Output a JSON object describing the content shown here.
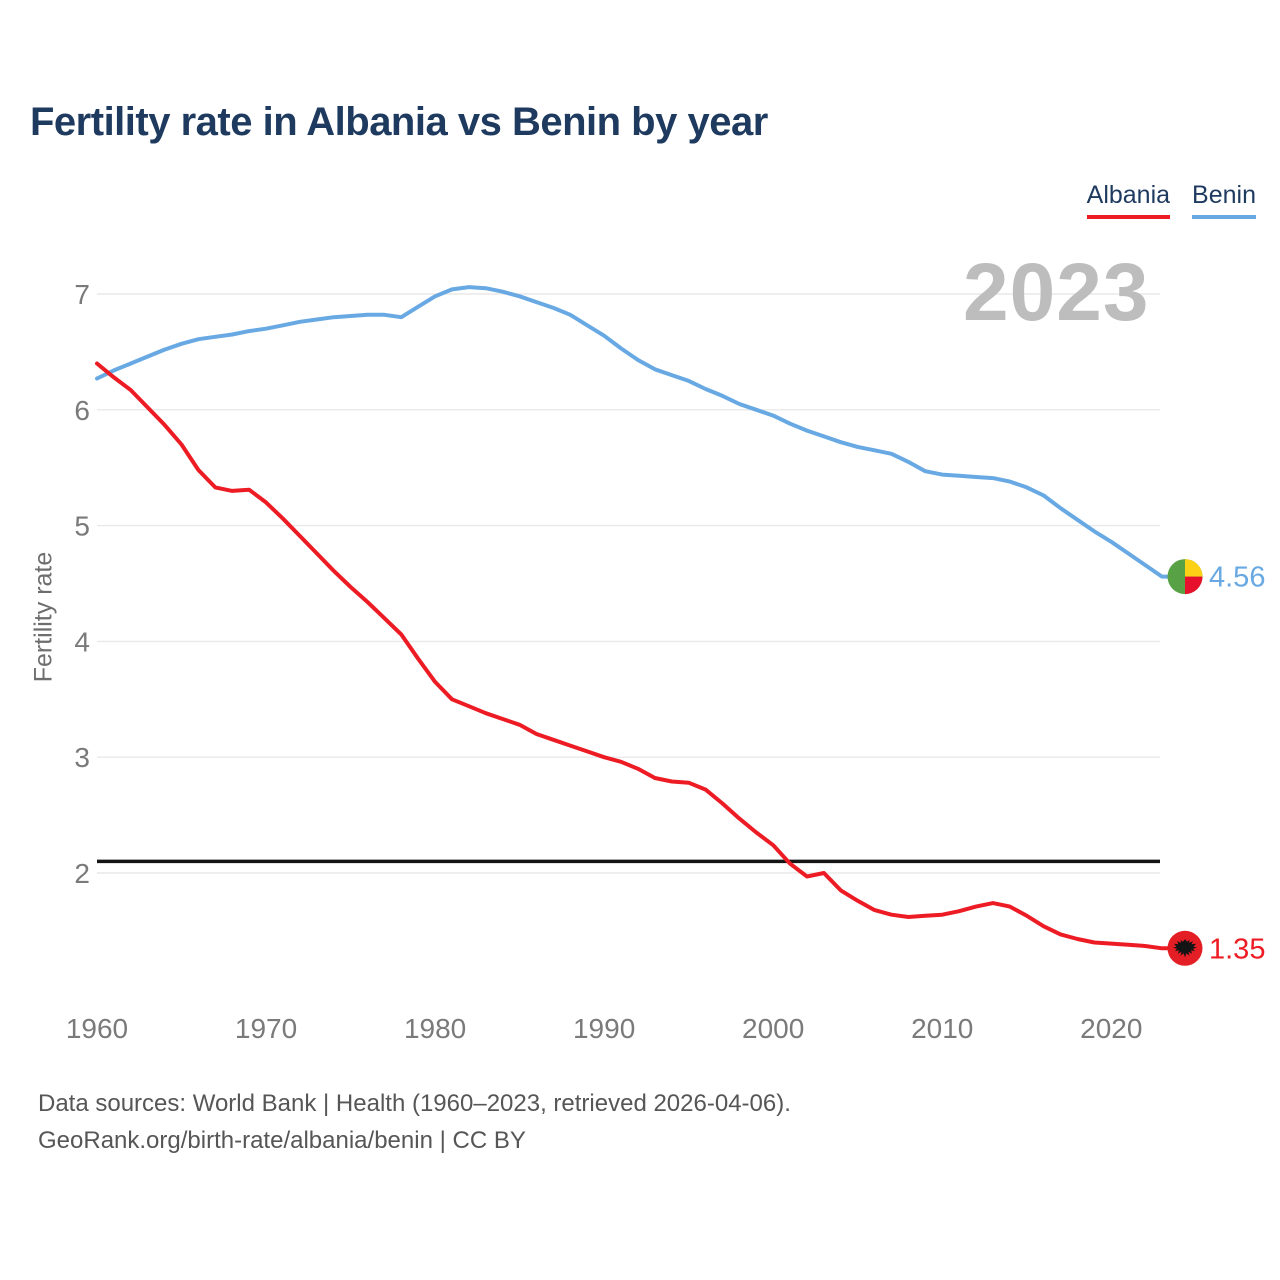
{
  "title": "Fertility rate in Albania vs Benin by year",
  "watermark": "2023",
  "legend": [
    {
      "label": "Albania",
      "color": "#ed1c24"
    },
    {
      "label": "Benin",
      "color": "#68a9e3"
    }
  ],
  "footer": {
    "line1": "Data sources: World Bank | Health (1960–2023, retrieved 2026-04-06).",
    "line2": "GeoRank.org/birth-rate/albania/benin | CC BY"
  },
  "colors": {
    "albania": "#ed1c24",
    "benin": "#68a9e3",
    "title_text": "#1e3a5f",
    "axis_text": "#7a7a7a",
    "gridline": "#e9e9e9",
    "watermark": "#bdbdbd",
    "footer_text": "#565656",
    "replacement_line": "#151515",
    "benin_flag_green": "#58a245",
    "benin_flag_yellow": "#fcd116",
    "benin_flag_red": "#e8112d",
    "albania_flag_red": "#e41e25",
    "albania_flag_eagle": "#141414"
  },
  "chart_data": {
    "type": "line",
    "title": "Fertility rate in Albania vs Benin by year",
    "xlabel": "",
    "ylabel": "Fertility rate",
    "x_range": [
      1960,
      2023
    ],
    "ylim": [
      1.1,
      7.3
    ],
    "x_ticks": [
      1960,
      1970,
      1980,
      1990,
      2000,
      2010,
      2020
    ],
    "y_ticks": [
      2,
      3,
      4,
      5,
      6,
      7
    ],
    "grid": "horizontal",
    "legend_position": "top-right",
    "replacement_line": {
      "value": 2.1
    },
    "series": [
      {
        "name": "Albania",
        "color": "#ed1c24",
        "end_label": "1.35",
        "flag": "albania-flag",
        "values": [
          6.4,
          6.28,
          6.17,
          6.02,
          5.87,
          5.7,
          5.48,
          5.33,
          5.3,
          5.31,
          5.2,
          5.06,
          4.91,
          4.76,
          4.61,
          4.47,
          4.34,
          4.2,
          4.06,
          3.85,
          3.65,
          3.5,
          3.44,
          3.38,
          3.33,
          3.28,
          3.2,
          3.15,
          3.1,
          3.05,
          3.0,
          2.96,
          2.9,
          2.82,
          2.79,
          2.78,
          2.72,
          2.6,
          2.47,
          2.35,
          2.24,
          2.08,
          1.97,
          2.0,
          1.85,
          1.76,
          1.68,
          1.64,
          1.62,
          1.63,
          1.64,
          1.67,
          1.71,
          1.74,
          1.71,
          1.63,
          1.54,
          1.47,
          1.43,
          1.4,
          1.39,
          1.38,
          1.37,
          1.35
        ]
      },
      {
        "name": "Benin",
        "color": "#68a9e3",
        "end_label": "4.56",
        "flag": "benin-flag",
        "values": [
          6.27,
          6.34,
          6.4,
          6.46,
          6.52,
          6.57,
          6.61,
          6.63,
          6.65,
          6.68,
          6.7,
          6.73,
          6.76,
          6.78,
          6.8,
          6.81,
          6.82,
          6.82,
          6.8,
          6.89,
          6.98,
          7.04,
          7.06,
          7.05,
          7.02,
          6.98,
          6.93,
          6.88,
          6.82,
          6.73,
          6.64,
          6.53,
          6.43,
          6.35,
          6.3,
          6.25,
          6.18,
          6.12,
          6.05,
          6.0,
          5.95,
          5.88,
          5.82,
          5.77,
          5.72,
          5.68,
          5.65,
          5.62,
          5.55,
          5.47,
          5.44,
          5.43,
          5.42,
          5.41,
          5.38,
          5.33,
          5.26,
          5.15,
          5.05,
          4.95,
          4.86,
          4.76,
          4.66,
          4.56
        ]
      }
    ]
  }
}
